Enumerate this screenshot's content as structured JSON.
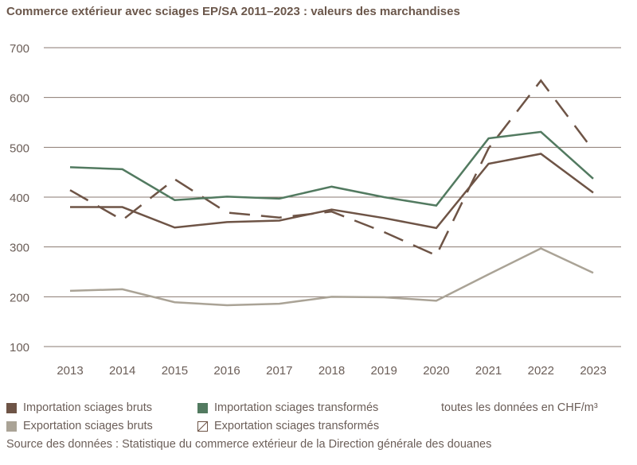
{
  "chart_data": {
    "type": "line",
    "title": "Commerce extérieur avec sciages EP/SA 2011–2023 : valeurs des marchandises",
    "xlabel": "",
    "ylabel": "",
    "x": [
      2013,
      2014,
      2015,
      2016,
      2017,
      2018,
      2019,
      2020,
      2021,
      2022,
      2023
    ],
    "xticks": [
      "2013",
      "2014",
      "2015",
      "2016",
      "2017",
      "2018",
      "2019",
      "2020",
      "2021",
      "2022",
      "2023"
    ],
    "yticks": [
      "100",
      "200",
      "300",
      "400",
      "500",
      "600",
      "700"
    ],
    "ylim": [
      100,
      700
    ],
    "grid": true,
    "legend_position": "bottom",
    "series": [
      {
        "name": "Importation sciages bruts",
        "color": "#6e5446",
        "style": "solid",
        "values": [
          380,
          380,
          339,
          350,
          353,
          375,
          358,
          338,
          467,
          487,
          409
        ]
      },
      {
        "name": "Importation sciages transformés",
        "color": "#527a60",
        "style": "solid",
        "values": [
          460,
          456,
          394,
          401,
          397,
          421,
          400,
          383,
          518,
          531,
          437
        ]
      },
      {
        "name": "Exportation sciages bruts",
        "color": "#aaa396",
        "style": "solid",
        "values": [
          212,
          215,
          189,
          183,
          186,
          200,
          199,
          192,
          245,
          297,
          248
        ]
      },
      {
        "name": "Exportation sciages transformés",
        "color": "#6e5446",
        "style": "dashed",
        "values": [
          414,
          354,
          436,
          369,
          359,
          371,
          330,
          283,
          498,
          634,
          494
        ]
      }
    ]
  },
  "units_note": "toutes les données en CHF/m³",
  "source": "Source des données : Statistique du commerce extérieur de la Direction générale des douanes"
}
